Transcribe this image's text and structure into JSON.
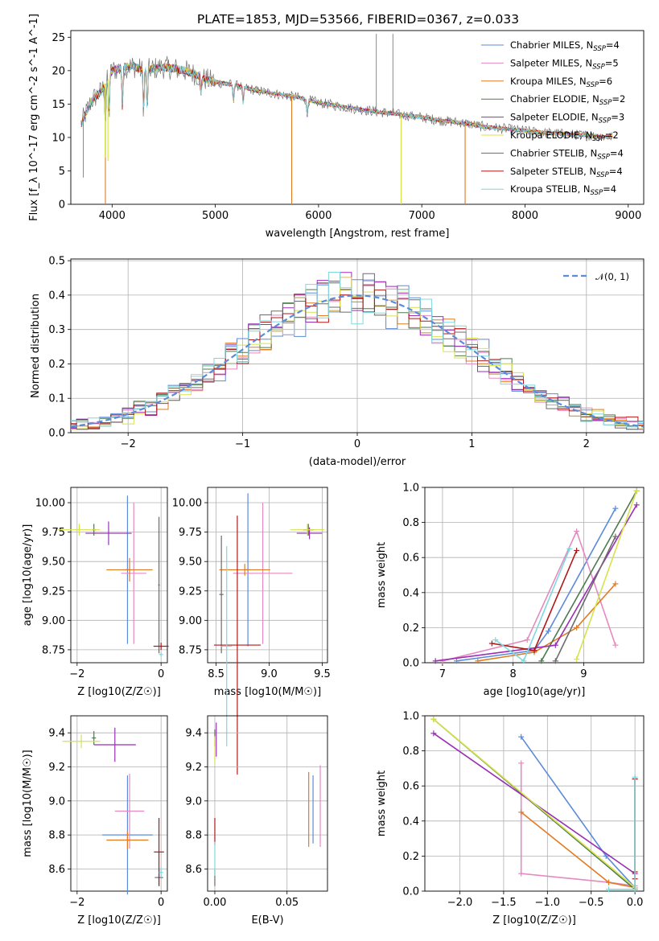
{
  "page": {
    "title": "PLATE=1853, MJD=53566, FIBERID=0367, z=0.033"
  },
  "colors": {
    "Chabrier MILES": "#5b8bd9",
    "Salpeter MILES": "#e58ac0",
    "Kroupa MILES": "#e07b23",
    "Chabrier ELODIE": "#4f7a4f",
    "Salpeter ELODIE": "#9a2fb5",
    "Kroupa ELODIE": "#d7e24a",
    "Chabrier STELIB": "#6b6b6b",
    "Salpeter STELIB": "#b01818",
    "Kroupa STELIB": "#7fd8de",
    "normal_curve": "#5b8bd9",
    "grid": "#b0b0b0"
  },
  "chart_data": [
    {
      "type": "line",
      "id": "spectrum",
      "title": "PLATE=1853, MJD=53566, FIBERID=0367, z=0.033",
      "xlabel": "wavelength [Angstrom, rest frame]",
      "ylabel": "Flux [f_λ 10^-17 erg cm^-2 s^-1 A^-1]",
      "xlim": [
        3600,
        9150
      ],
      "ylim": [
        0,
        26
      ],
      "xticks": [
        4000,
        5000,
        6000,
        7000,
        8000,
        9000
      ],
      "yticks": [
        0,
        5,
        10,
        15,
        20,
        25
      ],
      "grid": false,
      "legend_position": "top-right",
      "legend": [
        {
          "name": "Chabrier MILES, N_SSP=4",
          "base": "Chabrier MILES",
          "sub": "SSP",
          "suffix": "=4",
          "color": "#5b8bd9"
        },
        {
          "name": "Salpeter MILES, N_SSP=5",
          "base": "Salpeter MILES",
          "sub": "SSP",
          "suffix": "=5",
          "color": "#e58ac0"
        },
        {
          "name": "Kroupa MILES, N_SSP=6",
          "base": "Kroupa MILES",
          "sub": "SSP",
          "suffix": "=6",
          "color": "#e07b23"
        },
        {
          "name": "Chabrier ELODIE, N_SSP=2",
          "base": "Chabrier ELODIE",
          "sub": "SSP",
          "suffix": "=2",
          "color": "#4f7a4f"
        },
        {
          "name": "Salpeter ELODIE, N_SSP=3",
          "base": "Salpeter ELODIE",
          "sub": "SSP",
          "suffix": "=3",
          "color": "#9a2fb5"
        },
        {
          "name": "Kroupa ELODIE, N_SSP=2",
          "base": "Kroupa ELODIE",
          "sub": "SSP",
          "suffix": "=2",
          "color": "#d7e24a"
        },
        {
          "name": "Chabrier STELIB, N_SSP=4",
          "base": "Chabrier STELIB",
          "sub": "SSP",
          "suffix": "=4",
          "color": "#6b6b6b"
        },
        {
          "name": "Salpeter STELIB, N_SSP=4",
          "base": "Salpeter STELIB",
          "sub": "SSP",
          "suffix": "=4",
          "color": "#b01818"
        },
        {
          "name": "Kroupa STELIB, N_SSP=4",
          "base": "Kroupa STELIB",
          "sub": "SSP",
          "suffix": "=4",
          "color": "#7fd8de"
        }
      ],
      "continuum": [
        [
          3700,
          12
        ],
        [
          3800,
          15.5
        ],
        [
          3900,
          17
        ],
        [
          4000,
          20
        ],
        [
          4100,
          20.5
        ],
        [
          4200,
          20.7
        ],
        [
          4300,
          20
        ],
        [
          4400,
          20.3
        ],
        [
          4500,
          20.5
        ],
        [
          4600,
          20.3
        ],
        [
          4700,
          20
        ],
        [
          4800,
          19.5
        ],
        [
          4900,
          18.7
        ],
        [
          5000,
          18.3
        ],
        [
          5200,
          17.8
        ],
        [
          5400,
          17
        ],
        [
          5600,
          16.5
        ],
        [
          5800,
          16
        ],
        [
          6000,
          15.2
        ],
        [
          6200,
          14.7
        ],
        [
          6400,
          14.2
        ],
        [
          6600,
          13.8
        ],
        [
          6800,
          13.4
        ],
        [
          7000,
          13
        ],
        [
          7200,
          12.5
        ],
        [
          7400,
          12.2
        ],
        [
          7600,
          11.6
        ],
        [
          7800,
          11.3
        ],
        [
          8000,
          11
        ],
        [
          8200,
          10.7
        ],
        [
          8400,
          10.5
        ],
        [
          8600,
          10.3
        ],
        [
          8800,
          10.1
        ]
      ],
      "data_spikes": [
        [
          6560,
          25.5
        ],
        [
          6720,
          25.5
        ],
        [
          3720,
          4
        ],
        [
          3935,
          5
        ]
      ],
      "model_dips": [
        [
          3935,
          0
        ],
        [
          5740,
          0
        ],
        [
          6800,
          0
        ],
        [
          7420,
          0
        ],
        [
          3960,
          6.5
        ],
        [
          3933,
          7
        ]
      ]
    },
    {
      "type": "line",
      "id": "residuals",
      "xlabel": "(data-model)/error",
      "ylabel": "Normed distribution",
      "xlim": [
        -2.5,
        2.5
      ],
      "ylim": [
        0,
        0.505
      ],
      "xticks": [
        -2,
        -1,
        0,
        1,
        2
      ],
      "yticks": [
        0.0,
        0.1,
        0.2,
        0.3,
        0.4,
        0.5
      ],
      "grid": true,
      "legend_position": "top-right",
      "legend": [
        {
          "name": "𝒩(0, 1)",
          "color": "#5b8bd9",
          "style": "dashed"
        }
      ],
      "bin_width": 0.1
    },
    {
      "type": "scatter",
      "id": "age_vs_Z",
      "xlabel": "Z [log10(Z/Z☉)]",
      "ylabel": "age  [log10(age/yr)]",
      "xlim": [
        -2.15,
        0.15
      ],
      "ylim": [
        8.64,
        10.13
      ],
      "xticks": [
        -2,
        0
      ],
      "yticks": [
        8.75,
        9.0,
        9.25,
        9.5,
        9.75,
        10.0
      ],
      "grid": true,
      "points": [
        {
          "model": "Chabrier MILES",
          "x": -0.8,
          "xerr": 0.05,
          "y": 9.43,
          "yerr": 0.63
        },
        {
          "model": "Salpeter MILES",
          "x": -0.65,
          "xerr": 0.3,
          "y": 9.4,
          "yerr": 0.6
        },
        {
          "model": "Kroupa MILES",
          "x": -0.75,
          "xerr": 0.55,
          "y": 9.43,
          "yerr": 0.1
        },
        {
          "model": "Chabrier ELODIE",
          "x": -1.6,
          "xerr": 0.05,
          "y": 9.77,
          "yerr": 0.05
        },
        {
          "model": "Salpeter ELODIE",
          "x": -1.25,
          "xerr": 0.55,
          "y": 9.74,
          "yerr": 0.1
        },
        {
          "model": "Kroupa ELODIE",
          "x": -1.95,
          "xerr": 0.5,
          "y": 9.77,
          "yerr": 0.05
        },
        {
          "model": "Chabrier STELIB",
          "x": -0.05,
          "xerr": 0.02,
          "y": 9.3,
          "yerr": 0.58
        },
        {
          "model": "Salpeter STELIB",
          "x": 0.0,
          "xerr": 0.18,
          "y": 8.78,
          "yerr": 0.03
        },
        {
          "model": "Kroupa STELIB",
          "x": 0.0,
          "xerr": 0.05,
          "y": 8.71,
          "yerr": 0.02
        }
      ]
    },
    {
      "type": "scatter",
      "id": "age_vs_mass",
      "xlabel": "mass [log10(M/M☉)]",
      "ylabel": "",
      "xlim": [
        8.42,
        9.55
      ],
      "ylim": [
        8.64,
        10.13
      ],
      "xticks": [
        8.5,
        9.0,
        9.5
      ],
      "yticks": [
        8.75,
        9.0,
        9.25,
        9.5,
        9.75,
        10.0
      ],
      "grid": true,
      "points": [
        {
          "model": "Chabrier MILES",
          "x": 8.8,
          "xerr": 0.02,
          "y": 9.43,
          "yerr": 0.65
        },
        {
          "model": "Salpeter MILES",
          "x": 8.94,
          "xerr": 0.28,
          "y": 9.4,
          "yerr": 0.6
        },
        {
          "model": "Kroupa MILES",
          "x": 8.77,
          "xerr": 0.24,
          "y": 9.43,
          "yerr": 0.05
        },
        {
          "model": "Chabrier ELODIE",
          "x": 9.37,
          "xerr": 0.05,
          "y": 9.77,
          "yerr": 0.05
        },
        {
          "model": "Salpeter ELODIE",
          "x": 9.38,
          "xerr": 0.12,
          "y": 9.74,
          "yerr": 0.05
        },
        {
          "model": "Kroupa ELODIE",
          "x": 9.36,
          "xerr": 0.16,
          "y": 9.77,
          "yerr": 0.05
        },
        {
          "model": "Chabrier STELIB",
          "x": 8.55,
          "xerr": 0.02,
          "y": 9.22,
          "yerr": 0.5
        },
        {
          "model": "Salpeter STELIB",
          "x": 8.7,
          "xerr": 0.22,
          "y": 8.79,
          "yerr": 1.1
        },
        {
          "model": "Kroupa STELIB",
          "x": 8.6,
          "xerr": 0.05,
          "y": 8.78,
          "yerr": 0.85
        }
      ]
    },
    {
      "type": "line",
      "id": "massweight_vs_age",
      "xlabel": "age  [log10(age/yr)]",
      "ylabel": "mass weight",
      "xlim": [
        6.75,
        9.85
      ],
      "ylim": [
        0,
        1.0
      ],
      "xticks": [
        7,
        8,
        9
      ],
      "yticks": [
        0.0,
        0.2,
        0.4,
        0.6,
        0.8,
        1.0
      ],
      "grid": true,
      "series": [
        {
          "model": "Chabrier MILES",
          "points": [
            [
              7.2,
              0.01
            ],
            [
              8.3,
              0.07
            ],
            [
              8.5,
              0.18
            ],
            [
              9.45,
              0.88
            ]
          ]
        },
        {
          "model": "Salpeter MILES",
          "points": [
            [
              7.0,
              0.01
            ],
            [
              8.2,
              0.13
            ],
            [
              8.9,
              0.75
            ],
            [
              9.45,
              0.1
            ]
          ]
        },
        {
          "model": "Kroupa MILES",
          "points": [
            [
              7.5,
              0.01
            ],
            [
              8.3,
              0.06
            ],
            [
              8.9,
              0.2
            ],
            [
              9.45,
              0.45
            ]
          ]
        },
        {
          "model": "Chabrier ELODIE",
          "points": [
            [
              8.4,
              0.01
            ],
            [
              9.75,
              0.98
            ]
          ]
        },
        {
          "model": "Salpeter ELODIE",
          "points": [
            [
              6.9,
              0.01
            ],
            [
              8.6,
              0.1
            ],
            [
              9.75,
              0.9
            ]
          ]
        },
        {
          "model": "Kroupa ELODIE",
          "points": [
            [
              8.9,
              0.02
            ],
            [
              9.75,
              0.98
            ]
          ]
        },
        {
          "model": "Chabrier STELIB",
          "points": [
            [
              8.6,
              0.01
            ],
            [
              9.45,
              0.72
            ]
          ]
        },
        {
          "model": "Salpeter STELIB",
          "points": [
            [
              7.7,
              0.11
            ],
            [
              8.3,
              0.07
            ],
            [
              8.9,
              0.64
            ]
          ]
        },
        {
          "model": "Kroupa STELIB",
          "points": [
            [
              7.75,
              0.13
            ],
            [
              8.15,
              0.01
            ],
            [
              8.8,
              0.65
            ]
          ]
        }
      ]
    },
    {
      "type": "scatter",
      "id": "mass_vs_Z",
      "xlabel": "Z [log10(Z/Z☉)]",
      "ylabel": "mass [log10(M/M☉)]",
      "xlim": [
        -2.15,
        0.15
      ],
      "ylim": [
        8.47,
        9.5
      ],
      "xticks": [
        -2,
        0
      ],
      "yticks": [
        8.6,
        8.8,
        9.0,
        9.2,
        9.4
      ],
      "grid": true,
      "points": [
        {
          "model": "Chabrier MILES",
          "x": -0.8,
          "xerr": 0.6,
          "y": 8.8,
          "yerr": 0.35
        },
        {
          "model": "Salpeter MILES",
          "x": -0.75,
          "xerr": 0.35,
          "y": 8.94,
          "yerr": 0.22
        },
        {
          "model": "Kroupa MILES",
          "x": -0.8,
          "xerr": 0.5,
          "y": 8.77,
          "yerr": 0.05
        },
        {
          "model": "Chabrier ELODIE",
          "x": -1.6,
          "xerr": 0.05,
          "y": 9.37,
          "yerr": 0.04
        },
        {
          "model": "Salpeter ELODIE",
          "x": -1.1,
          "xerr": 0.5,
          "y": 9.33,
          "yerr": 0.1
        },
        {
          "model": "Kroupa ELODIE",
          "x": -1.9,
          "xerr": 0.45,
          "y": 9.35,
          "yerr": 0.04
        },
        {
          "model": "Chabrier STELIB",
          "x": -0.05,
          "xerr": 0.1,
          "y": 8.55,
          "yerr": 0.05
        },
        {
          "model": "Salpeter STELIB",
          "x": -0.05,
          "xerr": 0.12,
          "y": 8.7,
          "yerr": 0.2
        },
        {
          "model": "Kroupa STELIB",
          "x": 0.0,
          "xerr": 0.05,
          "y": 8.58,
          "yerr": 0.03
        }
      ]
    },
    {
      "type": "scatter",
      "id": "mass_vs_ebv",
      "xlabel": "E(B-V)",
      "ylabel": "",
      "xlim": [
        -0.005,
        0.078
      ],
      "ylim": [
        8.47,
        9.5
      ],
      "xticks": [
        0.0,
        0.05
      ],
      "yticks": [
        8.6,
        8.8,
        9.0,
        9.2,
        9.4
      ],
      "grid": true,
      "points": [
        {
          "model": "Chabrier MILES",
          "x": 0.068,
          "xerr": 0,
          "y": 8.95,
          "yerr": 0.2
        },
        {
          "model": "Salpeter MILES",
          "x": 0.073,
          "xerr": 0,
          "y": 8.97,
          "yerr": 0.24
        },
        {
          "model": "Kroupa MILES",
          "x": 0.065,
          "xerr": 0,
          "y": 8.95,
          "yerr": 0.22
        },
        {
          "model": "Chabrier ELODIE",
          "x": 0.0,
          "xerr": 0,
          "y": 9.37,
          "yerr": 0.05
        },
        {
          "model": "Salpeter ELODIE",
          "x": 0.001,
          "xerr": 0,
          "y": 9.36,
          "yerr": 0.1
        },
        {
          "model": "Kroupa ELODIE",
          "x": 0.0,
          "xerr": 0,
          "y": 9.3,
          "yerr": 0.08
        },
        {
          "model": "Chabrier STELIB",
          "x": 0.0,
          "xerr": 0,
          "y": 8.55,
          "yerr": 0.05
        },
        {
          "model": "Salpeter STELIB",
          "x": 0.0,
          "xerr": 0,
          "y": 8.82,
          "yerr": 0.08
        },
        {
          "model": "Kroupa STELIB",
          "x": 0.0,
          "xerr": 0,
          "y": 8.66,
          "yerr": 0.1
        }
      ]
    },
    {
      "type": "line",
      "id": "massweight_vs_Z",
      "xlabel": "Z [log10(Z/Z☉)]",
      "ylabel": "mass weight",
      "xlim": [
        -2.4,
        0.1
      ],
      "ylim": [
        0,
        1.0
      ],
      "xticks": [
        -2.0,
        -1.5,
        -1.0,
        -0.5,
        0.0
      ],
      "yticks": [
        0.0,
        0.2,
        0.4,
        0.6,
        0.8,
        1.0
      ],
      "grid": true,
      "series": [
        {
          "model": "Chabrier MILES",
          "points": [
            [
              -1.3,
              0.88
            ],
            [
              -0.33,
              0.2
            ],
            [
              0.0,
              0.02
            ]
          ]
        },
        {
          "model": "Salpeter MILES",
          "points": [
            [
              -1.3,
              0.73
            ],
            [
              -1.3,
              0.1
            ],
            [
              -0.3,
              0.05
            ],
            [
              0.0,
              0.03
            ]
          ]
        },
        {
          "model": "Kroupa MILES",
          "points": [
            [
              -1.3,
              0.45
            ],
            [
              -0.3,
              0.05
            ],
            [
              0.0,
              0.02
            ]
          ]
        },
        {
          "model": "Chabrier ELODIE",
          "points": [
            [
              -2.3,
              0.98
            ],
            [
              0.0,
              0.01
            ]
          ]
        },
        {
          "model": "Salpeter ELODIE",
          "points": [
            [
              -2.3,
              0.9
            ],
            [
              0.0,
              0.1
            ]
          ]
        },
        {
          "model": "Kroupa ELODIE",
          "points": [
            [
              -2.3,
              0.98
            ],
            [
              0.0,
              0.02
            ]
          ]
        },
        {
          "model": "Chabrier STELIB",
          "points": [
            [
              0.0,
              0.64
            ],
            [
              0.0,
              0.01
            ]
          ]
        },
        {
          "model": "Salpeter STELIB",
          "points": [
            [
              0.0,
              0.64
            ],
            [
              0.0,
              0.11
            ],
            [
              0.0,
              0.07
            ]
          ]
        },
        {
          "model": "Kroupa STELIB",
          "points": [
            [
              0.0,
              0.65
            ],
            [
              0.0,
              0.01
            ],
            [
              -0.3,
              0.01
            ]
          ]
        }
      ]
    }
  ]
}
